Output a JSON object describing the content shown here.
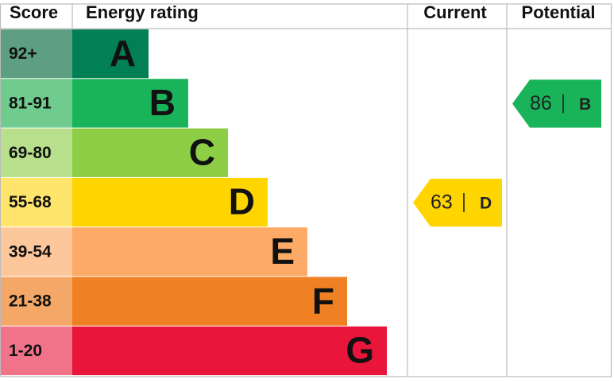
{
  "header": {
    "score": "Score",
    "rating": "Energy rating",
    "current": "Current",
    "potential": "Potential"
  },
  "bands": [
    {
      "score": "92+",
      "letter": "A",
      "color": "#008054",
      "light": "#5e9f81"
    },
    {
      "score": "81-91",
      "letter": "B",
      "color": "#19b459",
      "light": "#6fcb8e"
    },
    {
      "score": "69-80",
      "letter": "C",
      "color": "#8dce46",
      "light": "#b7df8c"
    },
    {
      "score": "55-68",
      "letter": "D",
      "color": "#ffd500",
      "light": "#ffe56b"
    },
    {
      "score": "39-54",
      "letter": "E",
      "color": "#fcaa65",
      "light": "#fdc79c"
    },
    {
      "score": "21-38",
      "letter": "F",
      "color": "#ef8023",
      "light": "#f4a766"
    },
    {
      "score": "1-20",
      "letter": "G",
      "color": "#e9153b",
      "light": "#f07389"
    }
  ],
  "current": {
    "value": 63,
    "letter": "D",
    "band": 3
  },
  "potential": {
    "value": 86,
    "letter": "B",
    "band": 1
  }
}
